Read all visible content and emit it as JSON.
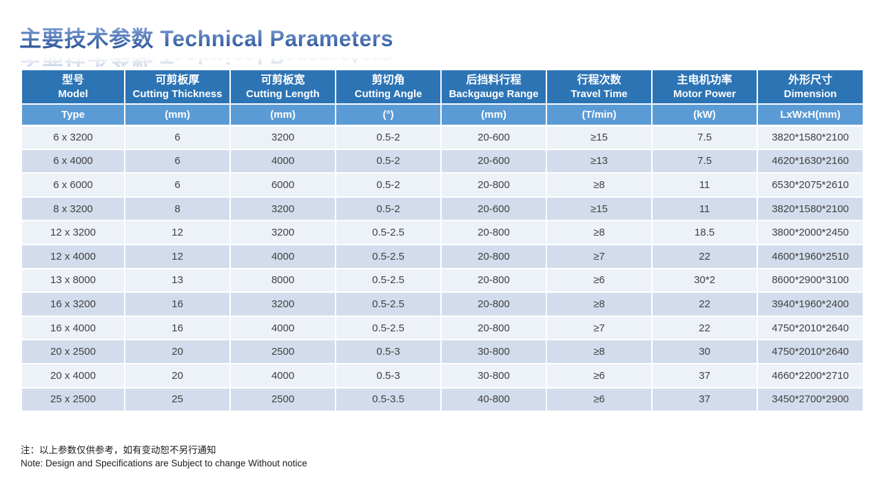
{
  "title": {
    "text": "主要技术参数 Technical Parameters"
  },
  "colors": {
    "header_dark": "#2d74b5",
    "header_light": "#5b9bd5",
    "band_light": "#edf1f8",
    "band_dark": "#d3dcec",
    "cell_text": "#404040",
    "title_grad_top": "#7d9cd2",
    "title_grad_bottom": "#2e5a9f"
  },
  "table": {
    "columns": [
      {
        "zh": "型号",
        "en": "Model",
        "unit": "Type"
      },
      {
        "zh": "可剪板厚",
        "en": "Cutting Thickness",
        "unit": "(mm)"
      },
      {
        "zh": "可剪板宽",
        "en": "Cutting Length",
        "unit": "(mm)"
      },
      {
        "zh": "剪切角",
        "en": "Cutting Angle",
        "unit": "(°)"
      },
      {
        "zh": "后挡料行程",
        "en": "Backgauge Range",
        "unit": "(mm)"
      },
      {
        "zh": "行程次数",
        "en": "Travel Time",
        "unit": "(T/min)"
      },
      {
        "zh": "主电机功率",
        "en": "Motor Power",
        "unit": "(kW)"
      },
      {
        "zh": "外形尺寸",
        "en": "Dimension",
        "unit": "LxWxH(mm)"
      }
    ],
    "rows": [
      [
        "6 x 3200",
        "6",
        "3200",
        "0.5-2",
        "20-600",
        "≥15",
        "7.5",
        "3820*1580*2100"
      ],
      [
        "6 x 4000",
        "6",
        "4000",
        "0.5-2",
        "20-600",
        "≥13",
        "7.5",
        "4620*1630*2160"
      ],
      [
        "6 x 6000",
        "6",
        "6000",
        "0.5-2",
        "20-800",
        "≥8",
        "11",
        "6530*2075*2610"
      ],
      [
        "8 x 3200",
        "8",
        "3200",
        "0.5-2",
        "20-600",
        "≥15",
        "11",
        "3820*1580*2100"
      ],
      [
        "12 x 3200",
        "12",
        "3200",
        "0.5-2.5",
        "20-800",
        "≥8",
        "18.5",
        "3800*2000*2450"
      ],
      [
        "12 x 4000",
        "12",
        "4000",
        "0.5-2.5",
        "20-800",
        "≥7",
        "22",
        "4600*1960*2510"
      ],
      [
        "13 x 8000",
        "13",
        "8000",
        "0.5-2.5",
        "20-800",
        "≥6",
        "30*2",
        "8600*2900*3100"
      ],
      [
        "16 x 3200",
        "16",
        "3200",
        "0.5-2.5",
        "20-800",
        "≥8",
        "22",
        "3940*1960*2400"
      ],
      [
        "16 x 4000",
        "16",
        "4000",
        "0.5-2.5",
        "20-800",
        "≥7",
        "22",
        "4750*2010*2640"
      ],
      [
        "20 x 2500",
        "20",
        "2500",
        "0.5-3",
        "30-800",
        "≥8",
        "30",
        "4750*2010*2640"
      ],
      [
        "20 x 4000",
        "20",
        "4000",
        "0.5-3",
        "30-800",
        "≥6",
        "37",
        "4660*2200*2710"
      ],
      [
        "25 x 2500",
        "25",
        "2500",
        "0.5-3.5",
        "40-800",
        "≥6",
        "37",
        "3450*2700*2900"
      ]
    ]
  },
  "notes": {
    "zh": "注：以上参数仅供参考，如有变动恕不另行通知",
    "en": "Note: Design and Specifications are Subject to change Without notice"
  }
}
